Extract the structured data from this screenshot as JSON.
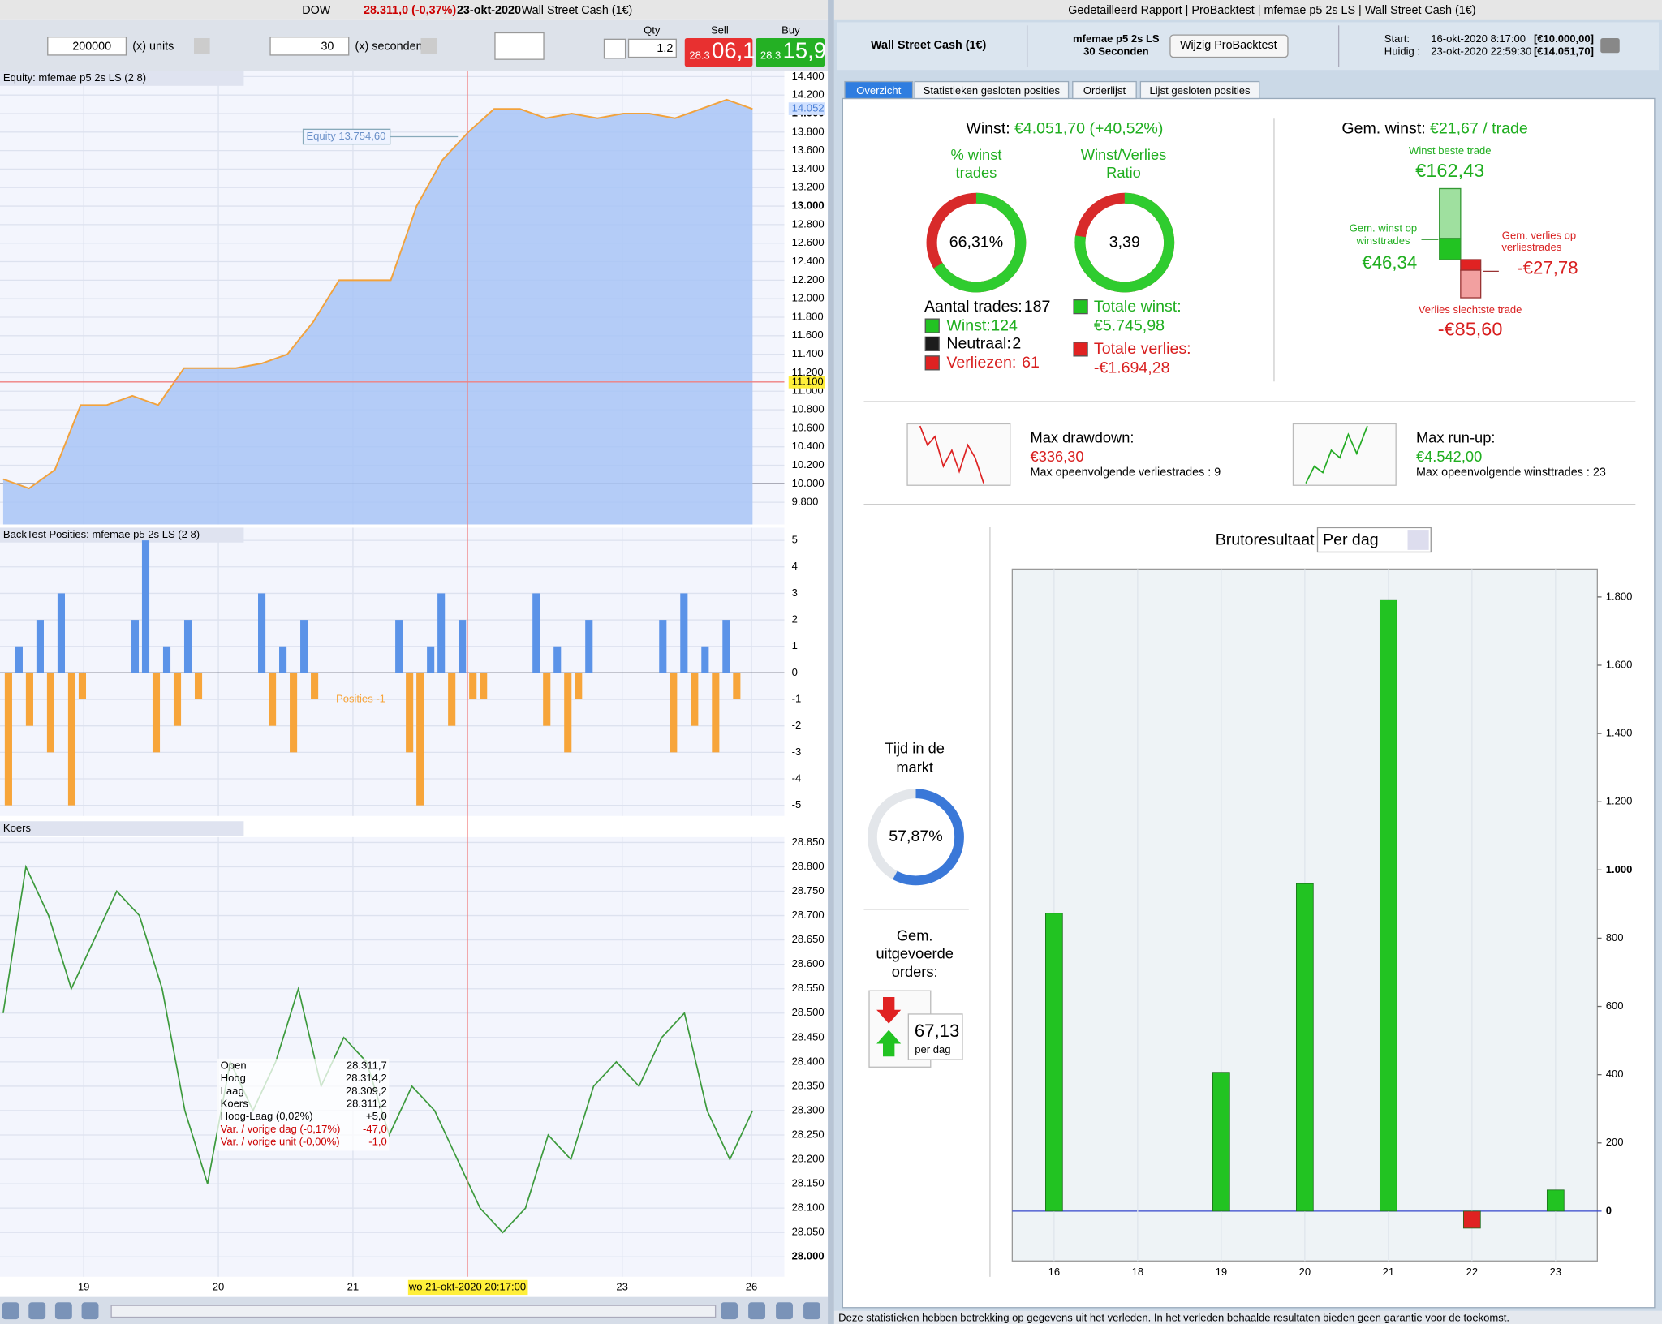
{
  "left_window": {
    "title_bar": {
      "symbol": "DOW",
      "price": "28.311,0 (-0,37%)",
      "date": "23-okt-2020",
      "instrument": "Wall Street Cash (1€)"
    },
    "toolbar": {
      "units_value": "200000",
      "units_label": "(x) units",
      "seconds_value": "30",
      "seconds_label": "(x) seconden",
      "qty_label": "Qty",
      "qty": "1.2",
      "sell_label": "Sell",
      "sell_prefix": "28.3",
      "sell": "06,1",
      "buy_label": "Buy",
      "buy_prefix": "28.3",
      "buy": "15,9"
    },
    "equity_panel": {
      "title": "Equity: mfemae p5 2s LS (2 8)",
      "annotation": "Equity 13.754,60",
      "last_value": {
        "value": 14052,
        "label": "14.052"
      },
      "cursor_value": {
        "value": 11100,
        "label": "11.100"
      },
      "ylim": [
        9560,
        14460
      ],
      "yticks": [
        {
          "value": 9800,
          "label": "9.800"
        },
        {
          "value": 10000,
          "label": "10.000"
        },
        {
          "value": 10200,
          "label": "10.200"
        },
        {
          "value": 10400,
          "label": "10.400"
        },
        {
          "value": 10600,
          "label": "10.600"
        },
        {
          "value": 10800,
          "label": "10.800"
        },
        {
          "value": 11000,
          "label": "11.000"
        },
        {
          "value": 11200,
          "label": "11.200"
        },
        {
          "value": 11400,
          "label": "11.400"
        },
        {
          "value": 11600,
          "label": "11.600"
        },
        {
          "value": 11800,
          "label": "11.800"
        },
        {
          "value": 12000,
          "label": "12.000"
        },
        {
          "value": 12200,
          "label": "12.200"
        },
        {
          "value": 12400,
          "label": "12.400"
        },
        {
          "value": 12600,
          "label": "12.600"
        },
        {
          "value": 12800,
          "label": "12.800"
        },
        {
          "value": 13000,
          "label": "13.000"
        },
        {
          "value": 13200,
          "label": "13.200"
        },
        {
          "value": 13400,
          "label": "13.400"
        },
        {
          "value": 13600,
          "label": "13.600"
        },
        {
          "value": 13800,
          "label": "13.800"
        },
        {
          "value": 14000,
          "label": "14.000"
        },
        {
          "value": 14200,
          "label": "14.200"
        },
        {
          "value": 14400,
          "label": "14.400"
        }
      ],
      "values": [
        10050,
        9950,
        10150,
        10850,
        10850,
        10950,
        10850,
        11250,
        11250,
        11250,
        11300,
        11400,
        11750,
        12200,
        12200,
        12200,
        13000,
        13500,
        13800,
        14050,
        14050,
        13950,
        14000,
        13950,
        14000,
        14000,
        13950,
        14050,
        14150,
        14050
      ]
    },
    "positions_panel": {
      "title": "BackTest Posities: mfemae p5 2s LS (2 8)",
      "annotation": "Posities -1",
      "ylim": [
        -5.4,
        5.48
      ],
      "yticks": [
        5,
        4,
        3,
        2,
        1,
        0,
        -1,
        -2,
        -3,
        -4,
        -5
      ],
      "colors": {
        "positive": "#5b93e8",
        "negative": "#f7a53a"
      },
      "values": [
        -5,
        1,
        -2,
        2,
        -3,
        3,
        -5,
        -1,
        0,
        0,
        0,
        0,
        2,
        5,
        -3,
        1,
        -2,
        2,
        -1,
        0,
        0,
        0,
        0,
        0,
        3,
        -2,
        1,
        -3,
        2,
        -1,
        0,
        0,
        0,
        0,
        0,
        0,
        0,
        2,
        -3,
        -5,
        1,
        3,
        -2,
        2,
        -1,
        -1,
        0,
        0,
        0,
        0,
        3,
        -2,
        1,
        -3,
        -1,
        2,
        0,
        0,
        0,
        0,
        0,
        0,
        2,
        -3,
        3,
        -2,
        1,
        -3,
        2,
        -1,
        0
      ]
    },
    "price_panel": {
      "title": "Koers",
      "ylim": [
        27959,
        28861
      ],
      "yticks": [
        {
          "value": 28000,
          "label": "28.000"
        },
        {
          "value": 28050,
          "label": "28.050"
        },
        {
          "value": 28100,
          "label": "28.100"
        },
        {
          "value": 28150,
          "label": "28.150"
        },
        {
          "value": 28200,
          "label": "28.200"
        },
        {
          "value": 28250,
          "label": "28.250"
        },
        {
          "value": 28300,
          "label": "28.300"
        },
        {
          "value": 28350,
          "label": "28.350"
        },
        {
          "value": 28400,
          "label": "28.400"
        },
        {
          "value": 28450,
          "label": "28.450"
        },
        {
          "value": 28500,
          "label": "28.500"
        },
        {
          "value": 28550,
          "label": "28.550"
        },
        {
          "value": 28600,
          "label": "28.600"
        },
        {
          "value": 28650,
          "label": "28.650"
        },
        {
          "value": 28700,
          "label": "28.700"
        },
        {
          "value": 28750,
          "label": "28.750"
        },
        {
          "value": 28800,
          "label": "28.800"
        },
        {
          "value": 28850,
          "label": "28.850"
        }
      ],
      "values": [
        28500,
        28800,
        28700,
        28550,
        28650,
        28750,
        28700,
        28550,
        28300,
        28150,
        28400,
        28300,
        28400,
        28550,
        28350,
        28450,
        28400,
        28250,
        28350,
        28300,
        28200,
        28100,
        28050,
        28100,
        28250,
        28200,
        28350,
        28400,
        28350,
        28450,
        28500,
        28300,
        28200,
        28300
      ],
      "hover": [
        [
          "Open",
          "28.311,7"
        ],
        [
          "Hoog",
          "28.314,2"
        ],
        [
          "Laag",
          "28.309,2"
        ],
        [
          "Koers",
          "28.311,2"
        ],
        [
          "Hoog-Laag (0,02%)",
          "+5,0"
        ],
        [
          "Var. / vorige dag (-0,17%)",
          "-47,0"
        ],
        [
          "Var. / vorige unit (-0,00%)",
          "-1,0"
        ]
      ]
    },
    "x_axis": {
      "labels": [
        "19",
        "20",
        "21",
        "23",
        "26"
      ],
      "cursor_label": "wo 21-okt-2020 20:17:00"
    }
  },
  "right_window": {
    "title_bar": "Gedetailleerd Rapport | ProBacktest | mfemae p5 2s LS | Wall Street Cash (1€)",
    "header": {
      "instrument": "Wall Street Cash (1€)",
      "system": "mfemae p5 2s LS",
      "timeframe": "30 Seconden",
      "button": "Wijzig ProBacktest",
      "start_label": "Start:",
      "start_date": "16-okt-2020 8:17:00",
      "start_capital": "[€10.000,00]",
      "current_label": "Huidig :",
      "current_date": "23-okt-2020 22:59:30",
      "current_capital": "[€14.051,70]"
    },
    "tabs": [
      "Overzicht",
      "Statistieken gesloten posities",
      "Orderlijst",
      "Lijst gesloten posities"
    ],
    "summary": {
      "profit_label": "Winst:",
      "profit": "€4.051,70 (+40,52%)",
      "win_pct_title": [
        "% winst",
        "trades"
      ],
      "win_pct": {
        "value": 66.31,
        "label": "66,31%"
      },
      "ratio_title": [
        "Winst/Verlies",
        "Ratio"
      ],
      "ratio": {
        "value": 3.39,
        "label": "3,39"
      },
      "trades_label": "Aantal trades:",
      "trades": "187",
      "wins_label": "Winst:",
      "wins": "124",
      "neutral_label": "Neutraal:",
      "neutral": "2",
      "losses_label": "Verliezen:",
      "losses": "61",
      "total_profit_label": "Totale winst:",
      "total_profit": "€5.745,98",
      "total_loss_label": "Totale verlies:",
      "total_loss": "-€1.694,28",
      "avg_label": "Gem. winst:",
      "avg": "€21,67 / trade",
      "best_label": "Winst beste trade",
      "best": "€162,43",
      "avg_win_label": [
        "Gem. winst op",
        "winsttrades"
      ],
      "avg_win": "€46,34",
      "avg_loss_label": [
        "Gem. verlies op",
        "verliestrades"
      ],
      "avg_loss": "-€27,78",
      "worst_label": "Verlies slechtste trade",
      "worst": "-€85,60"
    },
    "drawdown": {
      "label": "Max drawdown:",
      "value": "€336,30",
      "note": "Max opeenvolgende verliestrades : 9"
    },
    "runup": {
      "label": "Max run-up:",
      "value": "€4.542,00",
      "note": "Max opeenvolgende winsttrades : 23"
    },
    "time_in_market": {
      "title": [
        "Tijd in de",
        "markt"
      ],
      "value": 57.87,
      "label": "57,87%"
    },
    "orders": {
      "title": [
        "Gem.",
        "uitgevoerde",
        "orders:"
      ],
      "value": "67,13",
      "unit": "per dag"
    },
    "chart_data": {
      "type": "bar",
      "title": "Brutoresultaat",
      "period": "Per dag",
      "categories": [
        "16",
        "18",
        "19",
        "20",
        "21",
        "22",
        "23"
      ],
      "values": [
        873,
        0,
        407,
        960,
        1792,
        -50,
        62
      ],
      "colors": {
        "positive": "#22c322",
        "negative": "#e02222"
      },
      "ylim": [
        -146,
        1882
      ],
      "yticks": [
        0,
        200,
        400,
        600,
        800,
        {
          "value": 1000,
          "label": "1.000"
        },
        {
          "value": 1200,
          "label": "1.200"
        },
        {
          "value": 1400,
          "label": "1.400"
        },
        {
          "value": 1600,
          "label": "1.600"
        },
        {
          "value": 1800,
          "label": "1.800"
        }
      ]
    },
    "footer": "Deze statistieken hebben betrekking op gegevens uit het verleden. In het verleden behaalde resultaten bieden geen garantie voor de toekomst."
  }
}
